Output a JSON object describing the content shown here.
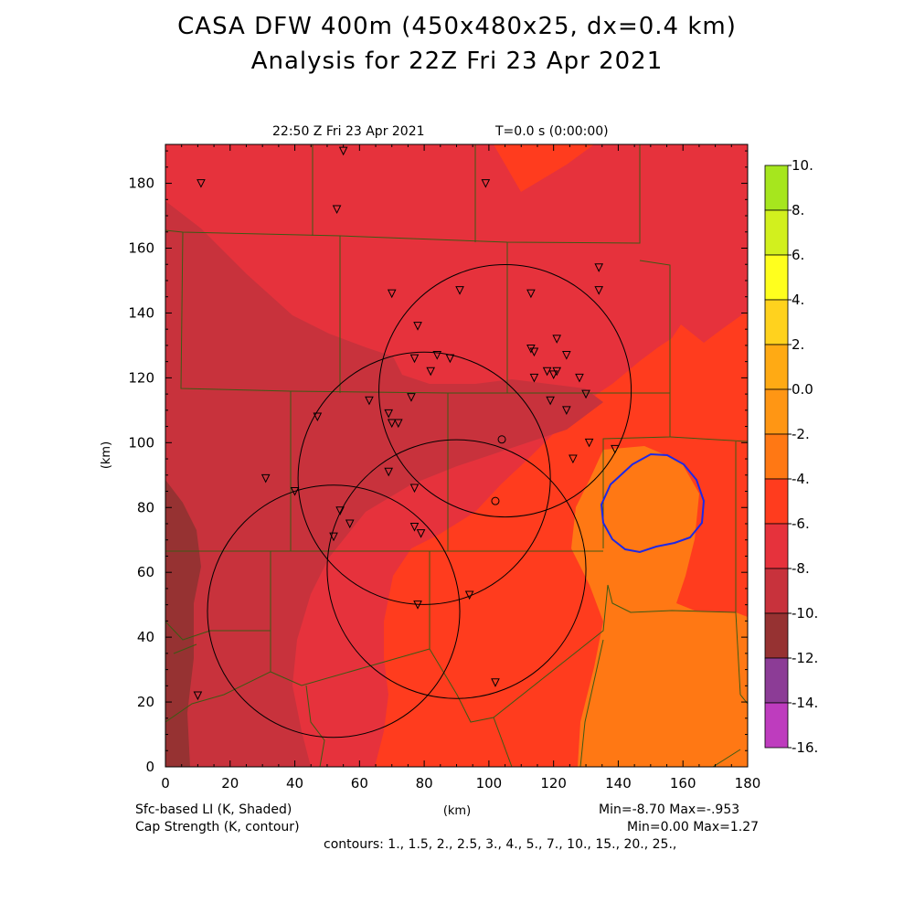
{
  "title_line1": "CASA DFW 400m (450x480x25, dx=0.4 km)",
  "title_line2": "Analysis for 22Z Fri 23 Apr 2021",
  "valid_time": "22:50 Z Fri 23 Apr 2021",
  "model_time": "T=0.0 s (0:00:00)",
  "x_axis_label": "(km)",
  "y_axis_label": "(km)",
  "x_ticks": [
    "0",
    "20",
    "40",
    "60",
    "80",
    "100",
    "120",
    "140",
    "160",
    "180"
  ],
  "y_ticks": [
    "0",
    "20",
    "40",
    "60",
    "80",
    "100",
    "120",
    "140",
    "160",
    "180"
  ],
  "x_range_km": [
    0,
    180
  ],
  "y_range_km": [
    0,
    192
  ],
  "field_shaded": "Sfc-based LI (K, Shaded)",
  "field_contour": "Cap Strength (K, contour)",
  "shaded_stats": "Min=-8.70 Max=-.953",
  "contour_stats": "Min=0.00 Max=1.27",
  "contour_levels": "contours: 1., 1.5, 2., 2.5, 3., 4., 5., 7., 10., 15., 20., 25.,",
  "colorbar": {
    "labels": [
      "10.",
      "8.",
      "6.",
      "4.",
      "2.",
      "0.0",
      "-2.",
      "-4.",
      "-6.",
      "-8.",
      "-10.",
      "-12.",
      "-14.",
      "-16."
    ],
    "colors": [
      "#a6e61e",
      "#d2f01e",
      "#ffff1e",
      "#ffd21e",
      "#ffaa14",
      "#ff9614",
      "#ff7814",
      "#ff3c1e",
      "#e6323c",
      "#c8323c",
      "#963232",
      "#8c3c96",
      "#be3cbe",
      "#dc46e6"
    ]
  },
  "shading_colors": {
    "minus2_minus4": "#ff3c1e",
    "minus4_minus6": "#e6323c",
    "minus6_minus8": "#c8323c",
    "minus8_minus10": "#963232",
    "zero_minus2": "#ff7814",
    "cap_contour": "#1e28e6",
    "boundaries": "#3c5a14"
  },
  "radar_rings_km": [
    {
      "x": 105,
      "y": 116,
      "r": 39
    },
    {
      "x": 80,
      "y": 89,
      "r": 39
    },
    {
      "x": 90,
      "y": 61,
      "r": 40
    },
    {
      "x": 52,
      "y": 48,
      "r": 39
    }
  ],
  "stations_km": [
    [
      11,
      180
    ],
    [
      55,
      190
    ],
    [
      53,
      172
    ],
    [
      99,
      180
    ],
    [
      70,
      146
    ],
    [
      91,
      147
    ],
    [
      113,
      146
    ],
    [
      134,
      154
    ],
    [
      134,
      147
    ],
    [
      78,
      136
    ],
    [
      84,
      127
    ],
    [
      77,
      126
    ],
    [
      88,
      126
    ],
    [
      82,
      122
    ],
    [
      121,
      132
    ],
    [
      113,
      129
    ],
    [
      114,
      128
    ],
    [
      124,
      127
    ],
    [
      118,
      122
    ],
    [
      120,
      121
    ],
    [
      121,
      122
    ],
    [
      114,
      120
    ],
    [
      128,
      120
    ],
    [
      76,
      114
    ],
    [
      63,
      113
    ],
    [
      119,
      113
    ],
    [
      130,
      115
    ],
    [
      69,
      109
    ],
    [
      124,
      110
    ],
    [
      47,
      108
    ],
    [
      70,
      106
    ],
    [
      72,
      106
    ],
    [
      131,
      100
    ],
    [
      139,
      98
    ],
    [
      126,
      95
    ],
    [
      69,
      91
    ],
    [
      31,
      89
    ],
    [
      77,
      86
    ],
    [
      40,
      85
    ],
    [
      54,
      79
    ],
    [
      57,
      75
    ],
    [
      77,
      74
    ],
    [
      79,
      72
    ],
    [
      52,
      71
    ],
    [
      78,
      50
    ],
    [
      94,
      53
    ],
    [
      102,
      26
    ],
    [
      10,
      22
    ]
  ],
  "open_markers_km": [
    [
      104,
      101
    ],
    [
      102,
      82
    ]
  ]
}
